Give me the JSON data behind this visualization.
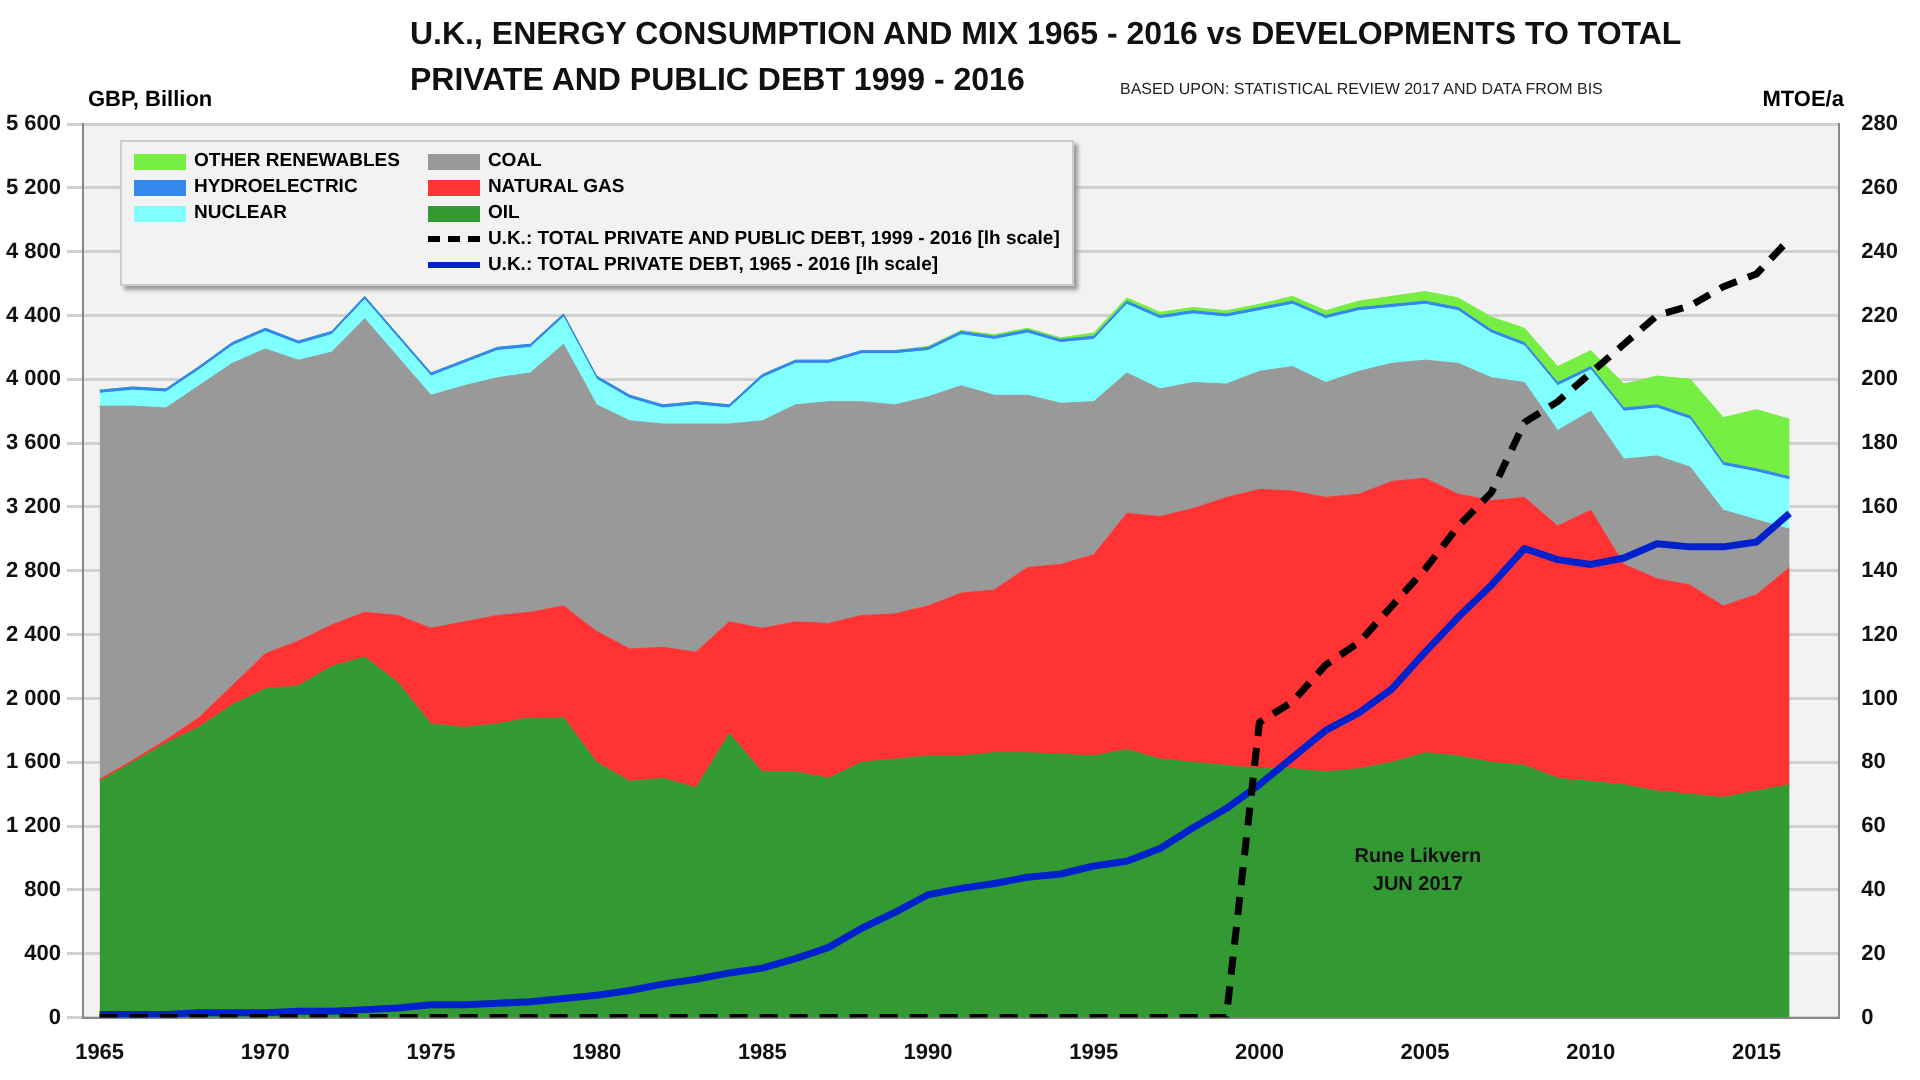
{
  "chart_data": {
    "type": "area",
    "title": "U.K., ENERGY CONSUMPTION AND MIX 1965 - 2016 vs DEVELOPMENTS TO TOTAL PRIVATE AND PUBLIC DEBT 1999 - 2016",
    "subtitle": "BASED UPON: STATISTICAL REVIEW  2017 AND DATA FROM BIS",
    "ylabel": "GBP, Billion",
    "y2label": "MTOE/a",
    "annotations": [
      "Rune Likvern",
      "JUN 2017"
    ],
    "x": [
      1965,
      1966,
      1967,
      1968,
      1969,
      1970,
      1971,
      1972,
      1973,
      1974,
      1975,
      1976,
      1977,
      1978,
      1979,
      1980,
      1981,
      1982,
      1983,
      1984,
      1985,
      1986,
      1987,
      1988,
      1989,
      1990,
      1991,
      1992,
      1993,
      1994,
      1995,
      1996,
      1997,
      1998,
      1999,
      2000,
      2001,
      2002,
      2003,
      2004,
      2005,
      2006,
      2007,
      2008,
      2009,
      2010,
      2011,
      2012,
      2013,
      2014,
      2015,
      2016
    ],
    "xlim": [
      1964.5,
      2017.5
    ],
    "xticks": [
      1965,
      1970,
      1975,
      1980,
      1985,
      1990,
      1995,
      2000,
      2005,
      2010,
      2015
    ],
    "ylim": [
      0,
      5600
    ],
    "yticks": [
      0,
      400,
      800,
      {
        "value": 1200,
        "label": "1 200"
      },
      {
        "value": 1600,
        "label": "1 600"
      },
      {
        "value": 2000,
        "label": "2 000"
      },
      {
        "value": 2400,
        "label": "2 400"
      },
      {
        "value": 2800,
        "label": "2 800"
      },
      {
        "value": 3200,
        "label": "3 200"
      },
      {
        "value": 3600,
        "label": "3 600"
      },
      {
        "value": 4000,
        "label": "4 000"
      },
      {
        "value": 4400,
        "label": "4 400"
      },
      {
        "value": 4800,
        "label": "4 800"
      },
      {
        "value": 5200,
        "label": "5 200"
      },
      {
        "value": 5600,
        "label": "5 600"
      }
    ],
    "y2lim": [
      0,
      280
    ],
    "y2ticks": [
      0,
      20,
      40,
      60,
      80,
      100,
      120,
      140,
      160,
      180,
      200,
      220,
      240,
      260,
      280
    ],
    "stacked": true,
    "grid": "y",
    "legend": "top left",
    "marker": "none",
    "series": [
      {
        "name": "OIL",
        "type": "area",
        "axis": "y2",
        "color": "#339933",
        "values": [
          74,
          80,
          86,
          91,
          98,
          103,
          104,
          110,
          113,
          105,
          92,
          91,
          92,
          94,
          94,
          80,
          74,
          75,
          72,
          89,
          77,
          77,
          75,
          80,
          81,
          82,
          82,
          83,
          83,
          82.5,
          82,
          84,
          81,
          80,
          79,
          78,
          78,
          77,
          78,
          80,
          83,
          82,
          80,
          79,
          75,
          74,
          73,
          71,
          70,
          69,
          71,
          73
        ]
      },
      {
        "name": "NATURAL GAS",
        "type": "area",
        "axis": "y2",
        "color": "#ff3333",
        "values": [
          0.6,
          0.6,
          1,
          3,
          6,
          11,
          14,
          13,
          14,
          21,
          30,
          33,
          34,
          33,
          35,
          41,
          41.5,
          41,
          42.5,
          35,
          45,
          47,
          48.5,
          46,
          45.5,
          47,
          51,
          51,
          58,
          59.5,
          63,
          74,
          76,
          79.5,
          84,
          87.5,
          87,
          86,
          86,
          88,
          86,
          82,
          82,
          84,
          79,
          85,
          69,
          66.5,
          65.5,
          60,
          61.5,
          68
        ]
      },
      {
        "name": "COAL",
        "type": "area",
        "axis": "y2",
        "color": "#999999",
        "values": [
          117,
          111,
          104,
          104,
          101,
          95.5,
          88,
          85.5,
          92,
          81,
          73,
          74,
          74.5,
          75,
          82,
          71,
          71.5,
          70,
          71.5,
          62,
          65,
          68,
          69.5,
          67,
          65.5,
          65.5,
          65,
          61,
          54,
          50.5,
          48,
          44,
          40,
          39.5,
          35.5,
          37,
          39,
          36,
          38.5,
          37,
          37,
          41,
          38.5,
          36,
          30,
          31,
          33,
          38.5,
          37,
          30,
          23.5,
          12
        ]
      },
      {
        "name": "NUCLEAR",
        "type": "area",
        "axis": "y2",
        "color": "#80ffff",
        "values": [
          4,
          5,
          5,
          5,
          5.5,
          5.5,
          5,
          5.5,
          6,
          6,
          6,
          7,
          8.5,
          8,
          8.5,
          8,
          7,
          5,
          6,
          5,
          13.5,
          13,
          12,
          15,
          16,
          14.5,
          16,
          17.5,
          19.5,
          19,
          19.5,
          21.5,
          22,
          21.5,
          21,
          19,
          19.5,
          20,
          19,
          17.5,
          17.5,
          16.5,
          14,
          11.5,
          14,
          13,
          15,
          15,
          15,
          14,
          15,
          15.5
        ]
      },
      {
        "name": "HYDROELECTRIC",
        "type": "area",
        "axis": "y2",
        "color": "#3388ee",
        "values": [
          1,
          1,
          1,
          1,
          1,
          1,
          1,
          1,
          1,
          1,
          1,
          1,
          1,
          1,
          1,
          1,
          1,
          1,
          1,
          1,
          1,
          1,
          1,
          1,
          1,
          1,
          1,
          1,
          1,
          1,
          1,
          1,
          1,
          1,
          1,
          1,
          1,
          1,
          1,
          1,
          1,
          1,
          1,
          1,
          1,
          1,
          1,
          1,
          1,
          1,
          1,
          1
        ]
      },
      {
        "name": "OTHER RENEWABLES",
        "type": "area",
        "axis": "y2",
        "color": "#77ee44",
        "values": [
          0,
          0,
          0,
          0,
          0,
          0,
          0,
          0,
          0,
          0,
          0,
          0,
          0,
          0,
          0,
          0,
          0,
          0,
          0,
          0,
          0,
          0,
          0,
          0,
          0,
          0.3,
          0.3,
          0.5,
          0.5,
          0.5,
          1,
          1,
          1,
          1,
          1,
          1,
          1.5,
          1.5,
          2,
          2.5,
          3,
          3,
          4,
          4.5,
          5,
          5,
          7.5,
          9,
          11.5,
          14,
          18.5,
          18
        ]
      },
      {
        "name": "U.K.: TOTAL PRIVATE AND PUBLIC DEBT, 1999 - 2016 [lh scale]",
        "type": "line",
        "line_style": "dashed",
        "color": "#000000",
        "values": [
          0,
          0,
          0,
          0,
          0,
          0,
          0,
          0,
          0,
          0,
          0,
          0,
          0,
          0,
          0,
          0,
          0,
          0,
          0,
          0,
          0,
          0,
          0,
          0,
          0,
          0,
          0,
          0,
          0,
          0,
          0,
          0,
          0,
          0,
          0,
          1850,
          1980,
          2210,
          2350,
          2580,
          2810,
          3080,
          3290,
          3730,
          3860,
          4040,
          4220,
          4400,
          4460,
          4580,
          4660,
          4880
        ]
      },
      {
        "name": "U.K.: TOTAL PRIVATE DEBT, 1965 - 2016 [lh scale]",
        "type": "line",
        "line_style": "solid",
        "color": "#0022cc",
        "values": [
          20,
          20,
          20,
          30,
          30,
          30,
          40,
          40,
          50,
          60,
          80,
          80,
          90,
          100,
          120,
          140,
          170,
          210,
          240,
          280,
          310,
          370,
          440,
          560,
          660,
          770,
          810,
          840,
          880,
          900,
          950,
          980,
          1060,
          1190,
          1310,
          1460,
          1630,
          1800,
          1910,
          2060,
          2290,
          2510,
          2710,
          2940,
          2870,
          2840,
          2880,
          2970,
          2950,
          2950,
          2980,
          3160
        ]
      }
    ]
  }
}
